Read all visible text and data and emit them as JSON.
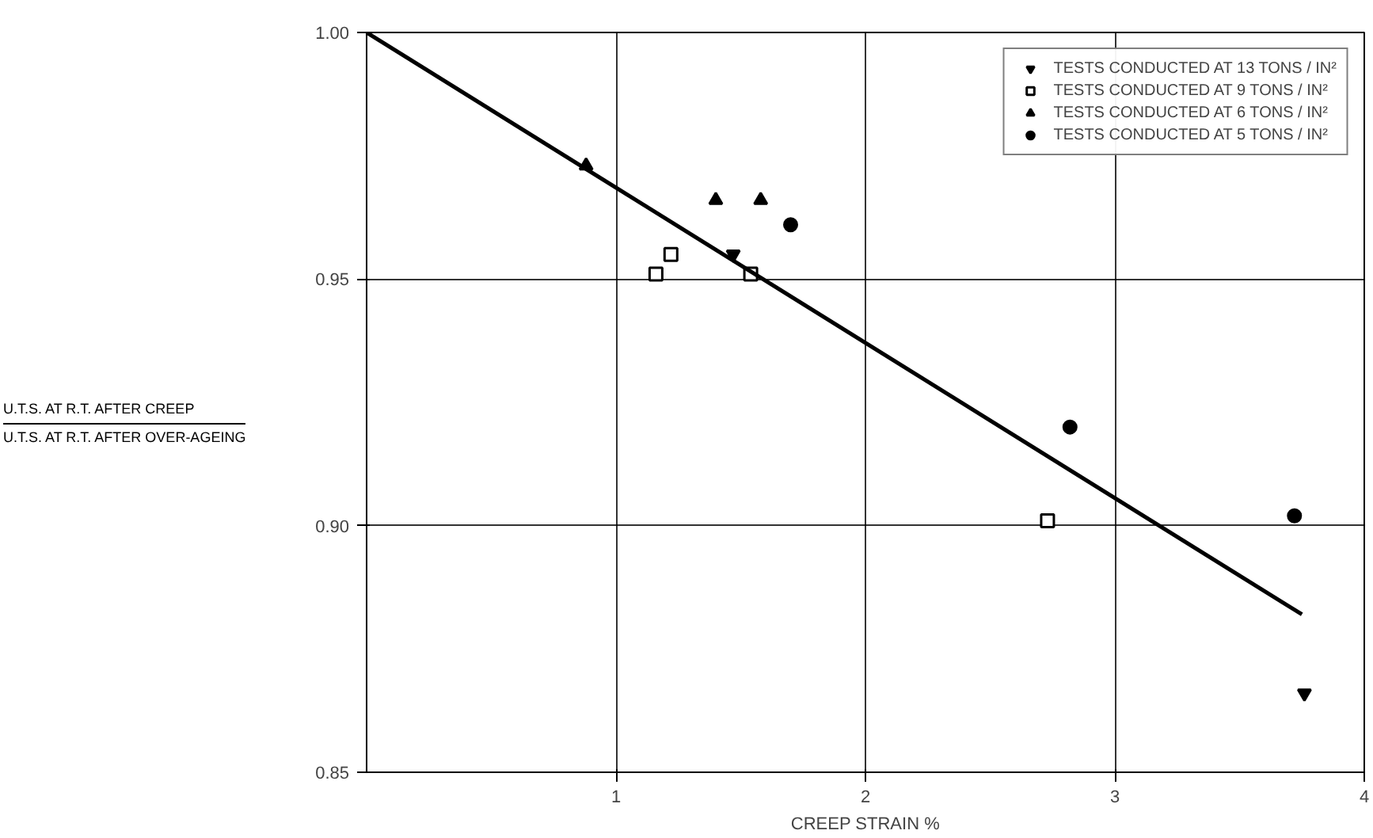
{
  "chart_data": {
    "type": "scatter",
    "xlabel": "CREEP STRAIN %",
    "ylabel": "U.T.S. AT R.T. AFTER CREEP\nU.T.S. AT R.T. AFTER OVER-AGEING",
    "xlim": [
      0,
      4
    ],
    "xticks": [
      1,
      2,
      3,
      4
    ],
    "ylim": [
      0.85,
      1.0
    ],
    "yticks": [
      {
        "value": 0.85,
        "label": "0.85"
      },
      {
        "value": 0.9,
        "label": "0.90"
      },
      {
        "value": 0.95,
        "label": "0.95"
      },
      {
        "value": 1.0,
        "label": "1.00"
      }
    ],
    "grid": true,
    "legend": "top right",
    "series": [
      {
        "name": "TESTS CONDUCTED AT 13 TONS / IN²",
        "color": "#000000",
        "marker": "triangle_down",
        "x": [
          1.47,
          3.76
        ],
        "values": [
          0.955,
          0.866
        ]
      },
      {
        "name": "TESTS CONDUCTED AT 9 TONS / IN²",
        "color": "#000000",
        "marker": "square",
        "x": [
          1.16,
          1.22,
          1.54,
          2.73
        ],
        "values": [
          0.951,
          0.955,
          0.951,
          0.901
        ]
      },
      {
        "name": "TESTS CONDUCTED AT 6 TONS / IN²",
        "color": "#000000",
        "marker": "triangle",
        "x": [
          0.88,
          1.4,
          1.58
        ],
        "values": [
          0.973,
          0.966,
          0.966
        ]
      },
      {
        "name": "TESTS CONDUCTED AT 5 TONS / IN²",
        "color": "#000000",
        "marker": "circle",
        "x": [
          1.7,
          2.82,
          3.72
        ],
        "values": [
          0.961,
          0.92,
          0.902
        ]
      },
      {
        "type": "line",
        "color": "#000000",
        "x": [
          0,
          3.75
        ],
        "values": [
          1.0,
          0.882
        ]
      }
    ]
  }
}
